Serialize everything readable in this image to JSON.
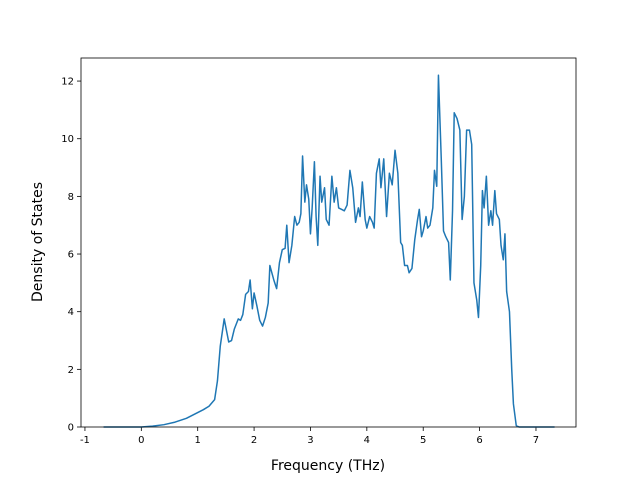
{
  "chart_data": {
    "type": "line",
    "x_label": "Frequency (THz)",
    "y_label": "Density of States",
    "xlim": [
      -1.07,
      7.71
    ],
    "ylim": [
      0,
      12.8
    ],
    "xticks": [
      -1,
      0,
      1,
      2,
      3,
      4,
      5,
      6,
      7
    ],
    "yticks": [
      0,
      2,
      4,
      6,
      8,
      10,
      12
    ],
    "grid": false,
    "series": [
      {
        "color": "#1f77b4",
        "x": [
          -0.67,
          0,
          0.2,
          0.4,
          0.6,
          0.8,
          1.0,
          1.1,
          1.2,
          1.3,
          1.35,
          1.4,
          1.47,
          1.55,
          1.6,
          1.65,
          1.72,
          1.76,
          1.8,
          1.85,
          1.9,
          1.93,
          1.97,
          2.0,
          2.05,
          2.1,
          2.15,
          2.2,
          2.25,
          2.28,
          2.35,
          2.4,
          2.45,
          2.5,
          2.55,
          2.58,
          2.62,
          2.67,
          2.72,
          2.76,
          2.8,
          2.83,
          2.86,
          2.9,
          2.93,
          2.97,
          3.0,
          3.03,
          3.07,
          3.1,
          3.13,
          3.17,
          3.2,
          3.25,
          3.28,
          3.33,
          3.38,
          3.42,
          3.46,
          3.5,
          3.55,
          3.6,
          3.65,
          3.7,
          3.75,
          3.8,
          3.85,
          3.88,
          3.92,
          3.97,
          4.0,
          4.05,
          4.1,
          4.13,
          4.17,
          4.22,
          4.25,
          4.3,
          4.35,
          4.4,
          4.45,
          4.5,
          4.55,
          4.6,
          4.63,
          4.67,
          4.72,
          4.75,
          4.8,
          4.85,
          4.9,
          4.93,
          4.97,
          5.0,
          5.05,
          5.08,
          5.12,
          5.17,
          5.2,
          5.24,
          5.27,
          5.32,
          5.36,
          5.4,
          5.45,
          5.48,
          5.52,
          5.55,
          5.6,
          5.65,
          5.69,
          5.73,
          5.77,
          5.82,
          5.86,
          5.9,
          5.95,
          5.98,
          6.02,
          6.05,
          6.08,
          6.12,
          6.16,
          6.2,
          6.23,
          6.27,
          6.3,
          6.35,
          6.38,
          6.42,
          6.45,
          6.48,
          6.53,
          6.57,
          6.6,
          6.65,
          6.7,
          7.33
        ],
        "values": [
          0,
          0,
          0.03,
          0.08,
          0.17,
          0.3,
          0.5,
          0.6,
          0.72,
          0.95,
          1.6,
          2.8,
          3.75,
          2.95,
          3.0,
          3.4,
          3.75,
          3.7,
          3.9,
          4.6,
          4.7,
          5.1,
          4.1,
          4.65,
          4.2,
          3.7,
          3.5,
          3.8,
          4.3,
          5.6,
          5.1,
          4.8,
          5.7,
          6.15,
          6.2,
          7.0,
          5.7,
          6.3,
          7.3,
          7.0,
          7.1,
          7.4,
          9.4,
          7.8,
          8.4,
          7.9,
          6.7,
          7.6,
          9.2,
          7.3,
          6.3,
          8.7,
          7.8,
          8.3,
          7.2,
          7.0,
          8.7,
          7.8,
          8.3,
          7.6,
          7.55,
          7.5,
          7.7,
          8.9,
          8.3,
          7.1,
          7.6,
          7.3,
          8.5,
          7.2,
          6.9,
          7.3,
          7.1,
          6.9,
          8.8,
          9.3,
          8.3,
          9.3,
          7.3,
          8.8,
          8.4,
          9.6,
          8.8,
          6.4,
          6.3,
          5.6,
          5.6,
          5.35,
          5.5,
          6.5,
          7.2,
          7.55,
          6.6,
          6.8,
          7.3,
          6.9,
          7.0,
          7.6,
          8.9,
          8.35,
          12.2,
          9.3,
          6.8,
          6.6,
          6.4,
          5.1,
          7.5,
          10.9,
          10.7,
          10.3,
          7.2,
          8.0,
          10.3,
          10.3,
          9.8,
          5.0,
          4.4,
          3.8,
          5.6,
          8.2,
          7.6,
          8.7,
          7.0,
          7.5,
          7.0,
          8.2,
          7.4,
          7.2,
          6.3,
          5.8,
          6.7,
          4.7,
          4.0,
          2.0,
          0.8,
          0.05,
          0,
          0
        ]
      }
    ]
  }
}
